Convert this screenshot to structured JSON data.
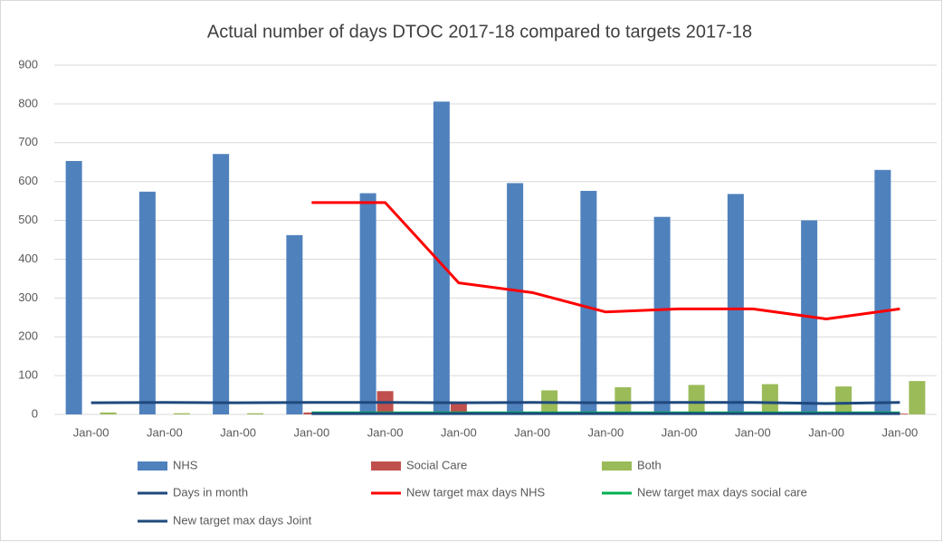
{
  "chart_data": {
    "type": "bar",
    "title": "Actual number of days DTOC 2017-18 compared to targets 2017-18",
    "categories": [
      "Jan-00",
      "Jan-00",
      "Jan-00",
      "Jan-00",
      "Jan-00",
      "Jan-00",
      "Jan-00",
      "Jan-00",
      "Jan-00",
      "Jan-00",
      "Jan-00",
      "Jan-00"
    ],
    "series": [
      {
        "name": "NHS",
        "type": "bar",
        "color": "#4f81bd",
        "values": [
          653,
          574,
          671,
          462,
          570,
          806,
          596,
          576,
          509,
          568,
          500,
          630
        ]
      },
      {
        "name": "Social Care",
        "type": "bar",
        "color": "#c0504d",
        "values": [
          0,
          0,
          0,
          5,
          60,
          28,
          0,
          0,
          0,
          0,
          0,
          2
        ]
      },
      {
        "name": "Both",
        "type": "bar",
        "color": "#9bbb59",
        "values": [
          5,
          3,
          3,
          0,
          0,
          0,
          62,
          70,
          76,
          78,
          72,
          86
        ]
      },
      {
        "name": "Days in month",
        "type": "line",
        "color": "#1f497d",
        "values": [
          30,
          31,
          30,
          31,
          31,
          30,
          31,
          30,
          31,
          31,
          28,
          31
        ]
      },
      {
        "name": "New target max days NHS",
        "type": "line",
        "color": "#ff0000",
        "values": [
          null,
          null,
          null,
          546,
          546,
          339,
          314,
          264,
          272,
          272,
          246,
          272
        ]
      },
      {
        "name": "New target max days social care",
        "type": "line",
        "color": "#00b050",
        "values": [
          null,
          null,
          null,
          4,
          4,
          4,
          4,
          4,
          4,
          4,
          4,
          4
        ]
      },
      {
        "name": "New target max days Joint",
        "type": "line",
        "color": "#1f497d",
        "values": [
          null,
          null,
          null,
          2,
          2,
          2,
          2,
          2,
          2,
          2,
          2,
          2
        ]
      }
    ],
    "ylim": [
      0,
      900
    ],
    "yticks": [
      0,
      100,
      200,
      300,
      400,
      500,
      600,
      700,
      800,
      900
    ],
    "grid": true
  }
}
